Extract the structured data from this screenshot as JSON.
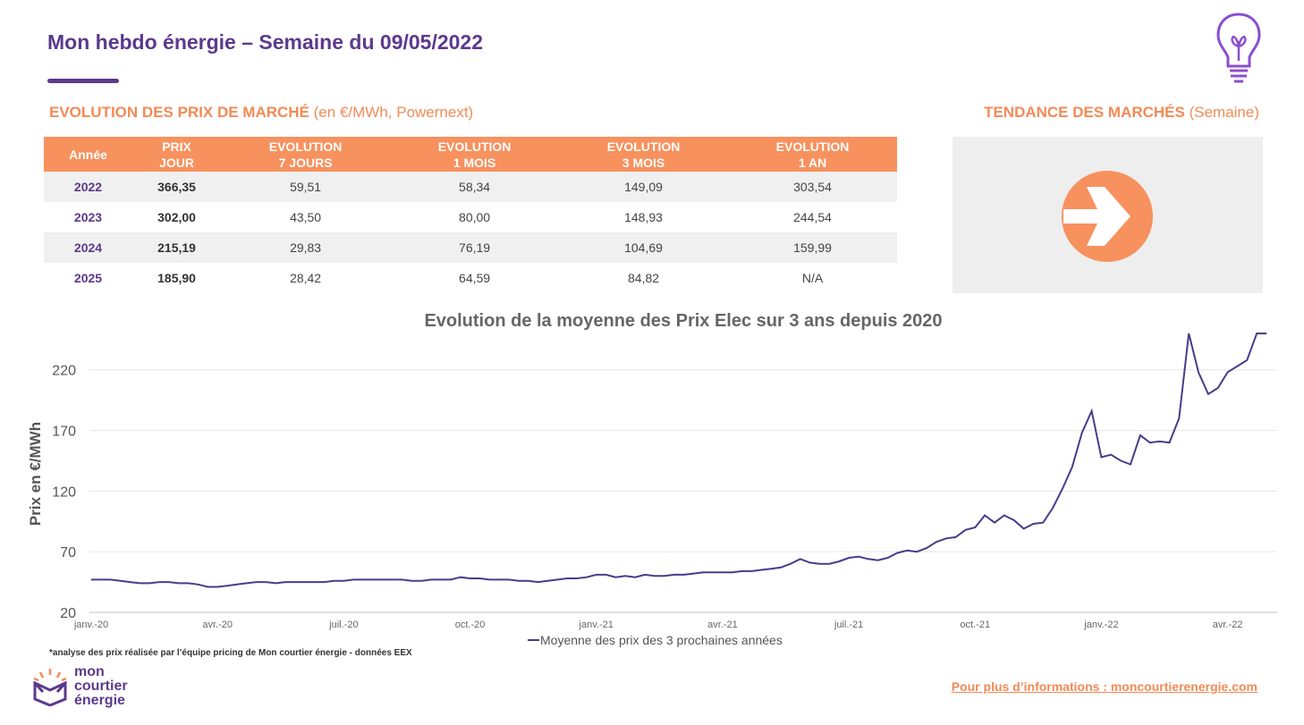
{
  "header": {
    "title": "Mon hebdo énergie – Semaine du 09/05/2022"
  },
  "market_section": {
    "title": "EVOLUTION DES PRIX DE MARCHÉ",
    "subtitle": " (en €/MWh, Powernext)"
  },
  "table": {
    "columns": [
      "Année",
      "PRIX\nJOUR",
      "EVOLUTION\n7 JOURS",
      "EVOLUTION\n1 MOIS",
      "EVOLUTION\n3 MOIS",
      "EVOLUTION\n1 AN"
    ],
    "rows": [
      [
        "2022",
        "366,35",
        "59,51",
        "58,34",
        "149,09",
        "303,54"
      ],
      [
        "2023",
        "302,00",
        "43,50",
        "80,00",
        "148,93",
        "244,54"
      ],
      [
        "2024",
        "215,19",
        "29,83",
        "76,19",
        "104,69",
        "159,99"
      ],
      [
        "2025",
        "185,90",
        "28,42",
        "64,59",
        "84,82",
        "N/A"
      ]
    ]
  },
  "trend_section": {
    "title": "TENDANCE DES MARCHÉS",
    "subtitle": " (Semaine)"
  },
  "chart_data": {
    "type": "line",
    "title": "Evolution de la moyenne des Prix Elec sur 3 ans depuis 2020",
    "y_label": "Prix en €/MWh",
    "categories": [
      "janv.-20",
      null,
      null,
      null,
      null,
      null,
      null,
      null,
      null,
      null,
      null,
      null,
      null,
      "avr.-20",
      null,
      null,
      null,
      null,
      null,
      null,
      null,
      null,
      null,
      null,
      null,
      null,
      "juil.-20",
      null,
      null,
      null,
      null,
      null,
      null,
      null,
      null,
      null,
      null,
      null,
      null,
      "oct.-20",
      null,
      null,
      null,
      null,
      null,
      null,
      null,
      null,
      null,
      null,
      null,
      null,
      "janv.-21",
      null,
      null,
      null,
      null,
      null,
      null,
      null,
      null,
      null,
      null,
      null,
      null,
      "avr.-21",
      null,
      null,
      null,
      null,
      null,
      null,
      null,
      null,
      null,
      null,
      null,
      null,
      "juil.-21",
      null,
      null,
      null,
      null,
      null,
      null,
      null,
      null,
      null,
      null,
      null,
      null,
      "oct.-21",
      null,
      null,
      null,
      null,
      null,
      null,
      null,
      null,
      null,
      null,
      null,
      null,
      "janv.-22",
      null,
      null,
      null,
      null,
      null,
      null,
      null,
      null,
      null,
      null,
      null,
      null,
      "avr.-22",
      null,
      null,
      null,
      null
    ],
    "series": [
      {
        "name": "Moyenne des prix des 3 prochaines années",
        "color": "#4b3b8a",
        "values": [
          47,
          47,
          47,
          46,
          45,
          44,
          44,
          45,
          45,
          44,
          44,
          43,
          41,
          41,
          42,
          43,
          44,
          45,
          45,
          44,
          45,
          45,
          45,
          45,
          45,
          46,
          46,
          47,
          47,
          47,
          47,
          47,
          47,
          46,
          46,
          47,
          47,
          47,
          49,
          48,
          48,
          47,
          47,
          47,
          46,
          46,
          45,
          46,
          47,
          48,
          48,
          49,
          51,
          51,
          49,
          50,
          49,
          51,
          50,
          50,
          51,
          51,
          52,
          53,
          53,
          53,
          53,
          54,
          54,
          55,
          56,
          57,
          60,
          64,
          61,
          60,
          60,
          62,
          65,
          66,
          64,
          63,
          65,
          69,
          71,
          70,
          73,
          78,
          81,
          82,
          88,
          90,
          100,
          94,
          100,
          96,
          89,
          93,
          94,
          106,
          122,
          140,
          168,
          186,
          148,
          150,
          145,
          142,
          166,
          160,
          161,
          160,
          180,
          250,
          218,
          200,
          205,
          218,
          223,
          228,
          250,
          250
        ]
      }
    ],
    "ylim": [
      20,
      250
    ],
    "yticks": [
      20,
      70,
      120,
      170,
      220
    ],
    "grid": true,
    "legend": "bottom"
  },
  "footnote": "*analyse des prix réalisée par l’équipe pricing de Mon courtier énergie -  données EEX",
  "logo": [
    "mon",
    "courtier",
    "énergie"
  ],
  "footer_link": "Pour plus d’informations : moncourtierenergie.com"
}
